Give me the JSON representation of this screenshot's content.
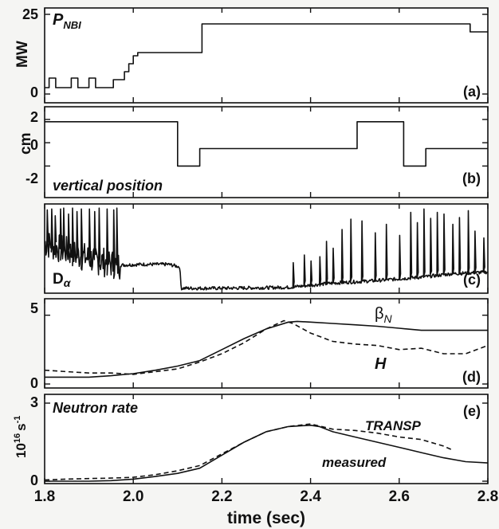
{
  "chart_data": {
    "type": "line",
    "xlabel": "time (sec)",
    "xlim": [
      1.8,
      2.8
    ],
    "xticks": [
      1.8,
      2.0,
      2.2,
      2.4,
      2.6,
      2.8
    ],
    "xtick_labels": [
      "1.8",
      "2.0",
      "2.2",
      "2.4",
      "2.6",
      "2.8"
    ],
    "panels": [
      {
        "id": "a",
        "panel_label": "(a)",
        "title": "P_NBI",
        "title_main": "P",
        "title_sub": "NBI",
        "ylabel": "MW",
        "ylim": [
          0,
          25
        ],
        "yticks": [
          0,
          25
        ],
        "ytick_labels": [
          "0",
          "25"
        ],
        "series": [
          {
            "style": "solid",
            "step": true,
            "x": [
              1.8,
              1.81,
              1.81,
              1.825,
              1.825,
              1.86,
              1.86,
              1.875,
              1.875,
              1.9,
              1.9,
              1.915,
              1.915,
              1.955,
              1.955,
              1.98,
              1.98,
              1.99,
              1.99,
              2.0,
              2.0,
              2.01,
              2.01,
              2.08,
              2.08,
              2.155,
              2.155,
              2.76,
              2.76,
              2.8
            ],
            "y": [
              2,
              2,
              5,
              5,
              2,
              2,
              5,
              5,
              2,
              2,
              5,
              5,
              2,
              2,
              4.5,
              4.5,
              7,
              7,
              9.5,
              9.5,
              12,
              12,
              13,
              13,
              13,
              13,
              22,
              22,
              19.5,
              19.5
            ]
          }
        ]
      },
      {
        "id": "b",
        "panel_label": "(b)",
        "ylabel": "cm",
        "ylim": [
          -3,
          2.2
        ],
        "yticks": [
          -2,
          0,
          2
        ],
        "ytick_labels": [
          "-2",
          "0",
          "2"
        ],
        "annotation": "vertical position",
        "series": [
          {
            "style": "solid",
            "step": true,
            "x": [
              1.8,
              2.1,
              2.1,
              2.15,
              2.15,
              2.505,
              2.505,
              2.61,
              2.61,
              2.66,
              2.66,
              2.8
            ],
            "y": [
              1.8,
              1.8,
              -2,
              -2,
              -0.5,
              -0.5,
              1.8,
              1.8,
              -2,
              -2,
              -0.5,
              -0.5
            ]
          }
        ]
      },
      {
        "id": "c",
        "panel_label": "(c)",
        "label_main": "D",
        "label_sub": "α",
        "ylim": [
          0,
          1
        ],
        "series": [
          {
            "style": "solid",
            "trace_model": {
              "base": [
                [
                  1.8,
                  0.56
                ],
                [
                  1.885,
                  0.4
                ],
                [
                  1.965,
                  0.3
                ],
                [
                  2.02,
                  0.31
                ],
                [
                  2.08,
                  0.31
                ],
                [
                  2.105,
                  0.28
                ],
                [
                  2.108,
                  0.03
                ],
                [
                  2.2,
                  0.03
                ],
                [
                  2.35,
                  0.04
                ],
                [
                  2.45,
                  0.09
                ],
                [
                  2.55,
                  0.12
                ],
                [
                  2.65,
                  0.16
                ],
                [
                  2.72,
                  0.2
                ],
                [
                  2.8,
                  0.22
                ]
              ],
              "spikes": [
                [
                  1.805,
                  0.95
                ],
                [
                  1.815,
                  0.96
                ],
                [
                  1.823,
                  0.88
                ],
                [
                  1.835,
                  0.96
                ],
                [
                  1.842,
                  0.97
                ],
                [
                  1.853,
                  0.9
                ],
                [
                  1.862,
                  0.97
                ],
                [
                  1.872,
                  0.93
                ],
                [
                  1.882,
                  0.96
                ],
                [
                  1.9,
                  0.96
                ],
                [
                  1.912,
                  0.93
                ],
                [
                  1.922,
                  0.97
                ],
                [
                  1.94,
                  0.96
                ],
                [
                  1.955,
                  0.95
                ],
                [
                  1.962,
                  0.97
                ],
                [
                  2.36,
                  0.33
                ],
                [
                  2.385,
                  0.42
                ],
                [
                  2.4,
                  0.35
                ],
                [
                  2.42,
                  0.4
                ],
                [
                  2.435,
                  0.58
                ],
                [
                  2.45,
                  0.5
                ],
                [
                  2.47,
                  0.72
                ],
                [
                  2.49,
                  0.84
                ],
                [
                  2.515,
                  0.82
                ],
                [
                  2.545,
                  0.68
                ],
                [
                  2.57,
                  0.78
                ],
                [
                  2.6,
                  0.65
                ],
                [
                  2.625,
                  0.92
                ],
                [
                  2.64,
                  0.8
                ],
                [
                  2.655,
                  0.96
                ],
                [
                  2.67,
                  0.85
                ],
                [
                  2.685,
                  0.92
                ],
                [
                  2.7,
                  0.9
                ],
                [
                  2.72,
                  0.78
                ],
                [
                  2.735,
                  0.86
                ],
                [
                  2.755,
                  0.94
                ],
                [
                  2.77,
                  0.7
                ],
                [
                  2.79,
                  0.62
                ]
              ]
            }
          }
        ]
      },
      {
        "id": "d",
        "panel_label": "(d)",
        "ylim": [
          0,
          5.5
        ],
        "yticks": [
          0,
          5
        ],
        "ytick_labels": [
          "0",
          "5"
        ],
        "series": [
          {
            "name": "β",
            "name_main": "β",
            "name_sub": "N",
            "style": "solid",
            "x": [
              1.8,
              1.85,
              1.9,
              1.95,
              2.0,
              2.05,
              2.1,
              2.15,
              2.2,
              2.25,
              2.3,
              2.35,
              2.37,
              2.4,
              2.45,
              2.5,
              2.55,
              2.6,
              2.65,
              2.7,
              2.75,
              2.8
            ],
            "y": [
              0.5,
              0.5,
              0.5,
              0.6,
              0.75,
              1.0,
              1.3,
              1.7,
              2.5,
              3.3,
              4.0,
              4.5,
              4.55,
              4.5,
              4.4,
              4.3,
              4.2,
              4.05,
              3.9,
              3.9,
              3.9,
              3.9
            ]
          },
          {
            "name": "H",
            "style": "dashed",
            "x": [
              1.8,
              1.85,
              1.9,
              1.95,
              2.0,
              2.05,
              2.1,
              2.15,
              2.2,
              2.25,
              2.3,
              2.34,
              2.36,
              2.4,
              2.45,
              2.5,
              2.55,
              2.6,
              2.65,
              2.7,
              2.75,
              2.8
            ],
            "y": [
              1.0,
              0.9,
              0.8,
              0.8,
              0.7,
              0.9,
              1.1,
              1.6,
              2.2,
              3.0,
              4.0,
              4.6,
              4.4,
              3.7,
              3.1,
              2.9,
              2.8,
              2.5,
              2.6,
              2.2,
              2.2,
              2.8
            ]
          }
        ]
      },
      {
        "id": "e",
        "panel_label": "(e)",
        "title": "Neutron rate",
        "ylabel": "10^16 s^-1",
        "ylim": [
          0,
          3
        ],
        "yticks": [
          0,
          3
        ],
        "ytick_labels": [
          "0",
          "3"
        ],
        "series": [
          {
            "name": "measured",
            "style": "solid",
            "x": [
              1.8,
              1.85,
              1.9,
              1.95,
              2.0,
              2.05,
              2.1,
              2.15,
              2.2,
              2.25,
              2.3,
              2.35,
              2.4,
              2.42,
              2.45,
              2.5,
              2.55,
              2.6,
              2.65,
              2.7,
              2.75,
              2.8
            ],
            "y": [
              0.0,
              0.0,
              0.0,
              0.02,
              0.08,
              0.18,
              0.3,
              0.5,
              1.0,
              1.5,
              1.9,
              2.1,
              2.15,
              2.1,
              1.9,
              1.7,
              1.5,
              1.3,
              1.1,
              0.9,
              0.75,
              0.7
            ]
          },
          {
            "name": "TRANSP",
            "style": "dashed",
            "x": [
              1.8,
              1.85,
              1.9,
              1.95,
              2.0,
              2.05,
              2.1,
              2.15,
              2.2,
              2.25,
              2.3,
              2.35,
              2.4,
              2.45,
              2.5,
              2.55,
              2.6,
              2.65,
              2.7,
              2.72
            ],
            "y": [
              0.05,
              0.08,
              0.1,
              0.12,
              0.15,
              0.25,
              0.4,
              0.6,
              1.05,
              1.5,
              1.9,
              2.1,
              2.2,
              2.0,
              1.95,
              1.85,
              1.7,
              1.6,
              1.35,
              1.2
            ]
          }
        ],
        "label_exponent_base": "10",
        "label_exponent_power": "16",
        "label_unit": "s",
        "label_unit_power": "-1"
      }
    ]
  }
}
